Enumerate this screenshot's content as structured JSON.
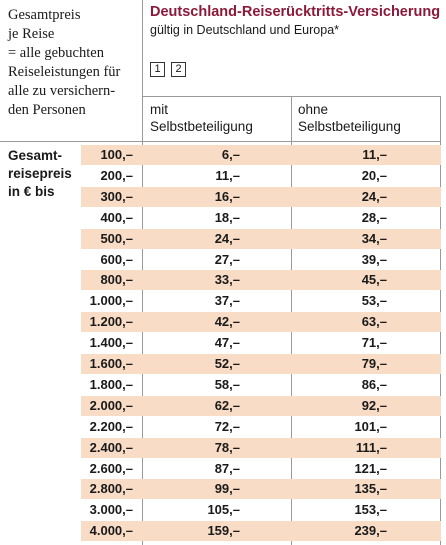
{
  "header_left": {
    "lines": [
      "Gesamtpreis",
      "je Reise",
      "= alle gebuchten",
      "Reiseleistungen für",
      "alle zu versichern-",
      "den Personen"
    ]
  },
  "insurance": {
    "title": "Deutschland-Reiserücktritts-Versicherung",
    "subtitle": "gültig in Deutschland  und Europa*",
    "footnote_refs": [
      "1",
      "2"
    ]
  },
  "columns": {
    "mit": [
      "mit",
      "Selbstbeteiligung"
    ],
    "ohne": [
      "ohne",
      "Selbstbeteiligung"
    ]
  },
  "row_label": [
    "Gesamt-",
    "reisepreis",
    "in € bis"
  ],
  "colors": {
    "title": "#8b1a3a",
    "row_shade": "#f8dcc6",
    "rule": "#9a9a9a"
  },
  "rows": [
    {
      "price": "100,–",
      "mit": "6,–",
      "ohne": "11,–"
    },
    {
      "price": "200,–",
      "mit": "11,–",
      "ohne": "20,–"
    },
    {
      "price": "300,–",
      "mit": "16,–",
      "ohne": "24,–"
    },
    {
      "price": "400,–",
      "mit": "18,–",
      "ohne": "28,–"
    },
    {
      "price": "500,–",
      "mit": "24,–",
      "ohne": "34,–"
    },
    {
      "price": "600,–",
      "mit": "27,–",
      "ohne": "39,–"
    },
    {
      "price": "800,–",
      "mit": "33,–",
      "ohne": "45,–"
    },
    {
      "price": "1.000,–",
      "mit": "37,–",
      "ohne": "53,–"
    },
    {
      "price": "1.200,–",
      "mit": "42,–",
      "ohne": "63,–"
    },
    {
      "price": "1.400,–",
      "mit": "47,–",
      "ohne": "71,–"
    },
    {
      "price": "1.600,–",
      "mit": "52,–",
      "ohne": "79,–"
    },
    {
      "price": "1.800,–",
      "mit": "58,–",
      "ohne": "86,–"
    },
    {
      "price": "2.000,–",
      "mit": "62,–",
      "ohne": "92,–"
    },
    {
      "price": "2.200,–",
      "mit": "72,–",
      "ohne": "101,–"
    },
    {
      "price": "2.400,–",
      "mit": "78,–",
      "ohne": "111,–"
    },
    {
      "price": "2.600,–",
      "mit": "87,–",
      "ohne": "121,–"
    },
    {
      "price": "2.800,–",
      "mit": "99,–",
      "ohne": "135,–"
    },
    {
      "price": "3.000,–",
      "mit": "105,–",
      "ohne": "153,–"
    },
    {
      "price": "4.000,–",
      "mit": "159,–",
      "ohne": "239,–"
    }
  ]
}
